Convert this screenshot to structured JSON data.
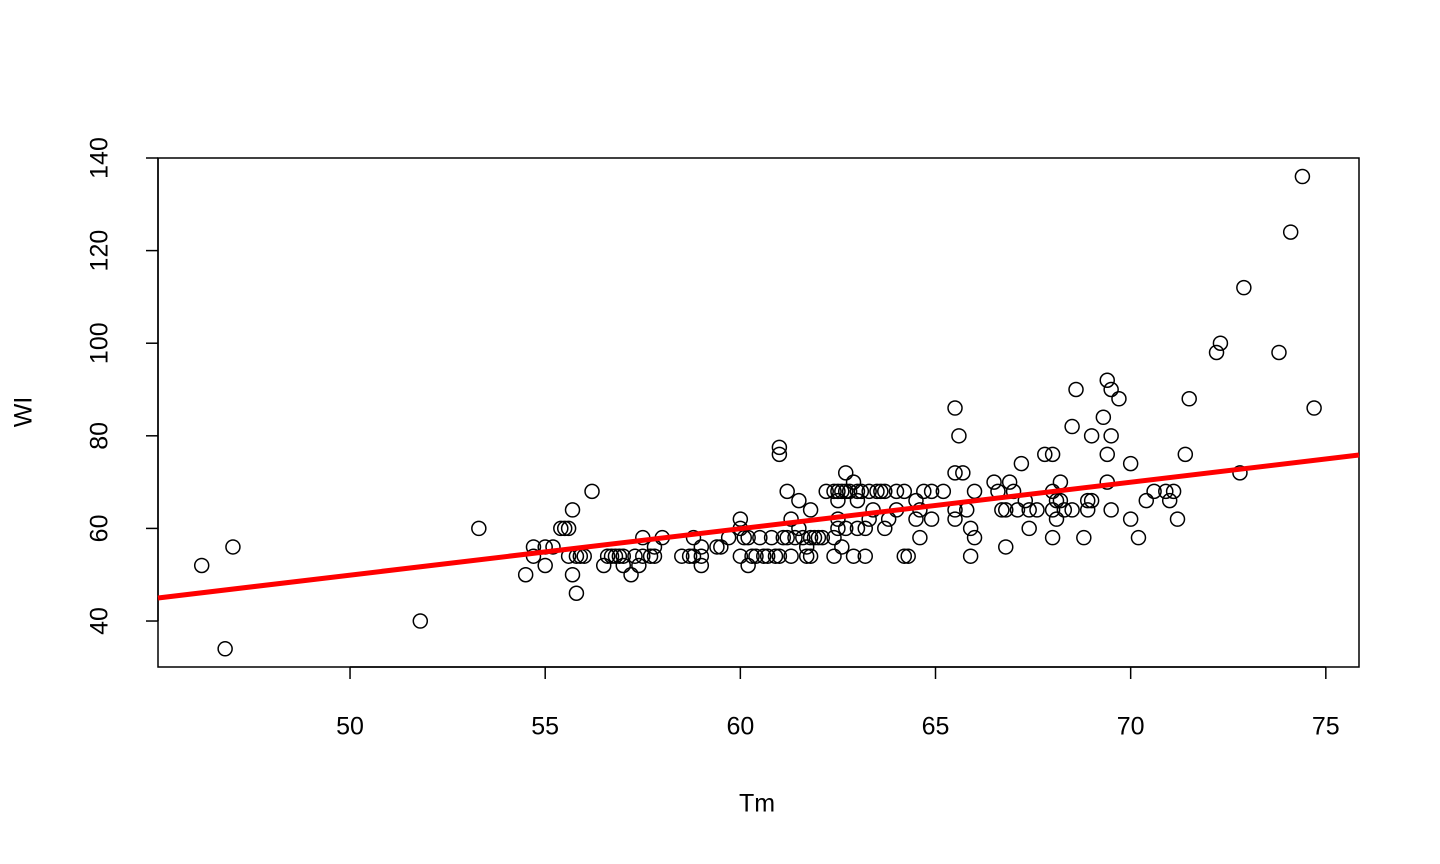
{
  "chart_data": {
    "type": "scatter",
    "xlabel": "Tm",
    "ylabel": "WI",
    "x": [
      46.2,
      46.8,
      47.0,
      51.8,
      53.3,
      54.5,
      54.7,
      54.7,
      55.0,
      55.0,
      55.2,
      55.4,
      55.5,
      55.6,
      55.6,
      55.7,
      55.7,
      55.8,
      55.8,
      55.9,
      56.0,
      56.2,
      56.5,
      56.6,
      56.7,
      56.8,
      56.9,
      57.0,
      57.0,
      57.2,
      57.3,
      57.4,
      57.5,
      57.5,
      57.7,
      57.8,
      57.8,
      58.0,
      58.5,
      58.7,
      58.8,
      58.8,
      59.0,
      59.0,
      59.0,
      59.4,
      59.5,
      59.7,
      60.0,
      60.0,
      60.0,
      60.1,
      60.2,
      60.2,
      60.3,
      60.4,
      60.5,
      60.6,
      60.7,
      60.8,
      60.9,
      61.0,
      61.0,
      61.0,
      61.1,
      61.2,
      61.2,
      61.3,
      61.3,
      61.4,
      61.5,
      61.5,
      61.6,
      61.7,
      61.7,
      61.8,
      61.8,
      61.8,
      61.9,
      62.0,
      62.1,
      62.2,
      62.4,
      62.4,
      62.4,
      62.5,
      62.5,
      62.5,
      62.5,
      62.6,
      62.6,
      62.7,
      62.7,
      62.7,
      62.8,
      62.9,
      62.9,
      63.0,
      63.0,
      63.0,
      63.1,
      63.2,
      63.2,
      63.3,
      63.3,
      63.4,
      63.5,
      63.6,
      63.7,
      63.7,
      63.8,
      64.0,
      64.0,
      64.2,
      64.2,
      64.3,
      64.5,
      64.5,
      64.6,
      64.6,
      64.7,
      64.9,
      64.9,
      65.2,
      65.5,
      65.5,
      65.5,
      65.5,
      65.6,
      65.7,
      65.8,
      65.9,
      65.9,
      66.0,
      66.0,
      66.5,
      66.6,
      66.7,
      66.8,
      66.8,
      66.9,
      67.0,
      67.1,
      67.2,
      67.3,
      67.4,
      67.4,
      67.6,
      67.8,
      68.0,
      68.0,
      68.0,
      68.0,
      68.1,
      68.1,
      68.2,
      68.2,
      68.3,
      68.5,
      68.5,
      68.6,
      68.8,
      68.9,
      68.9,
      69.0,
      69.0,
      69.3,
      69.4,
      69.4,
      69.4,
      69.5,
      69.5,
      69.5,
      69.7,
      70.0,
      70.0,
      70.2,
      70.4,
      70.6,
      70.9,
      71.0,
      71.1,
      71.2,
      71.4,
      71.5,
      72.2,
      72.3,
      72.8,
      72.9,
      73.8,
      74.1,
      74.4,
      74.7
    ],
    "values": [
      52,
      34,
      56,
      40,
      60,
      50,
      56,
      54,
      52,
      56,
      56,
      60,
      60,
      60,
      54,
      64,
      50,
      46,
      54,
      54,
      54,
      68,
      52,
      54,
      54,
      54,
      54,
      52,
      54,
      50,
      54,
      52,
      58,
      54,
      54,
      56,
      54,
      58,
      54,
      54,
      58,
      54,
      56,
      52,
      54,
      56,
      56,
      58,
      62,
      60,
      54,
      58,
      52,
      58,
      54,
      54,
      58,
      54,
      54,
      58,
      54,
      77.5,
      76,
      54,
      58,
      68,
      58,
      62,
      54,
      58,
      66,
      60,
      58,
      56,
      54,
      64,
      58,
      54,
      58,
      58,
      58,
      68,
      68,
      54,
      58,
      66,
      62,
      60,
      68,
      68,
      56,
      72,
      68,
      60,
      68,
      70,
      54,
      68,
      66,
      60,
      68,
      60,
      54,
      68,
      62,
      64,
      68,
      68,
      60,
      68,
      62,
      68,
      64,
      68,
      54,
      54,
      66,
      62,
      64,
      58,
      68,
      68,
      62,
      68,
      86,
      72,
      64,
      62,
      80,
      72,
      64,
      60,
      54,
      68,
      58,
      70,
      68,
      64,
      56,
      64,
      70,
      68,
      64,
      74,
      66,
      64,
      60,
      64,
      76,
      76,
      68,
      64,
      58,
      66,
      62,
      70,
      66,
      64,
      82,
      64,
      90,
      58,
      66,
      64,
      80,
      66,
      84,
      92,
      76,
      70,
      90,
      80,
      64,
      88,
      74,
      62,
      58,
      66,
      68,
      68,
      66,
      68,
      62,
      76,
      88,
      98,
      100,
      72,
      112,
      98,
      124,
      136,
      86
    ],
    "point_color": "#000000",
    "fit": {
      "intercept": -0.27,
      "slope": 1.0036,
      "color": "#ff0000"
    },
    "xlim": [
      45.08,
      75.85
    ],
    "ylim": [
      30.07,
      140
    ],
    "xticks": [
      50,
      55,
      60,
      65,
      70,
      75
    ],
    "yticks": [
      40,
      60,
      80,
      100,
      120,
      140
    ]
  }
}
